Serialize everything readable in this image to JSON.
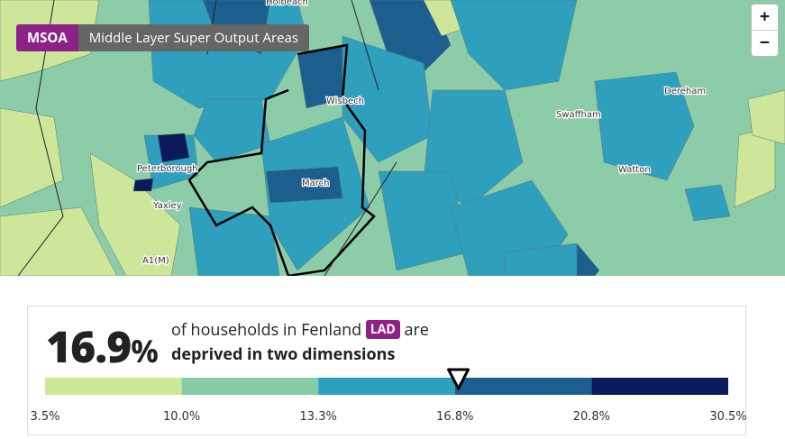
{
  "badge": {
    "code": "MSOA",
    "text": "Middle Layer Super Output Areas"
  },
  "zoom": {
    "in": "+",
    "out": "−"
  },
  "map": {
    "labels": [
      "Holbeach",
      "Wisbech",
      "Peterborough",
      "March",
      "Yaxley",
      "A1(M)",
      "Swaffham",
      "Dereham",
      "Watton"
    ]
  },
  "summary": {
    "value": 16.9,
    "unit": "%",
    "text_before": "of households in Fenland",
    "area_type": "LAD",
    "text_after": "are",
    "measure": "deprived in two dimensions"
  },
  "legend": {
    "breaks": [
      {
        "value": 3.5,
        "label": "3.5%"
      },
      {
        "value": 10.0,
        "label": "10.0%"
      },
      {
        "value": 13.3,
        "label": "13.3%"
      },
      {
        "value": 16.8,
        "label": "16.8%"
      },
      {
        "value": 20.8,
        "label": "20.8%"
      },
      {
        "value": 30.5,
        "label": "30.5%"
      }
    ],
    "colors": [
      "#cde69a",
      "#87cba6",
      "#2e9fbd",
      "#1c5f8f",
      "#0b1a5a"
    ]
  }
}
